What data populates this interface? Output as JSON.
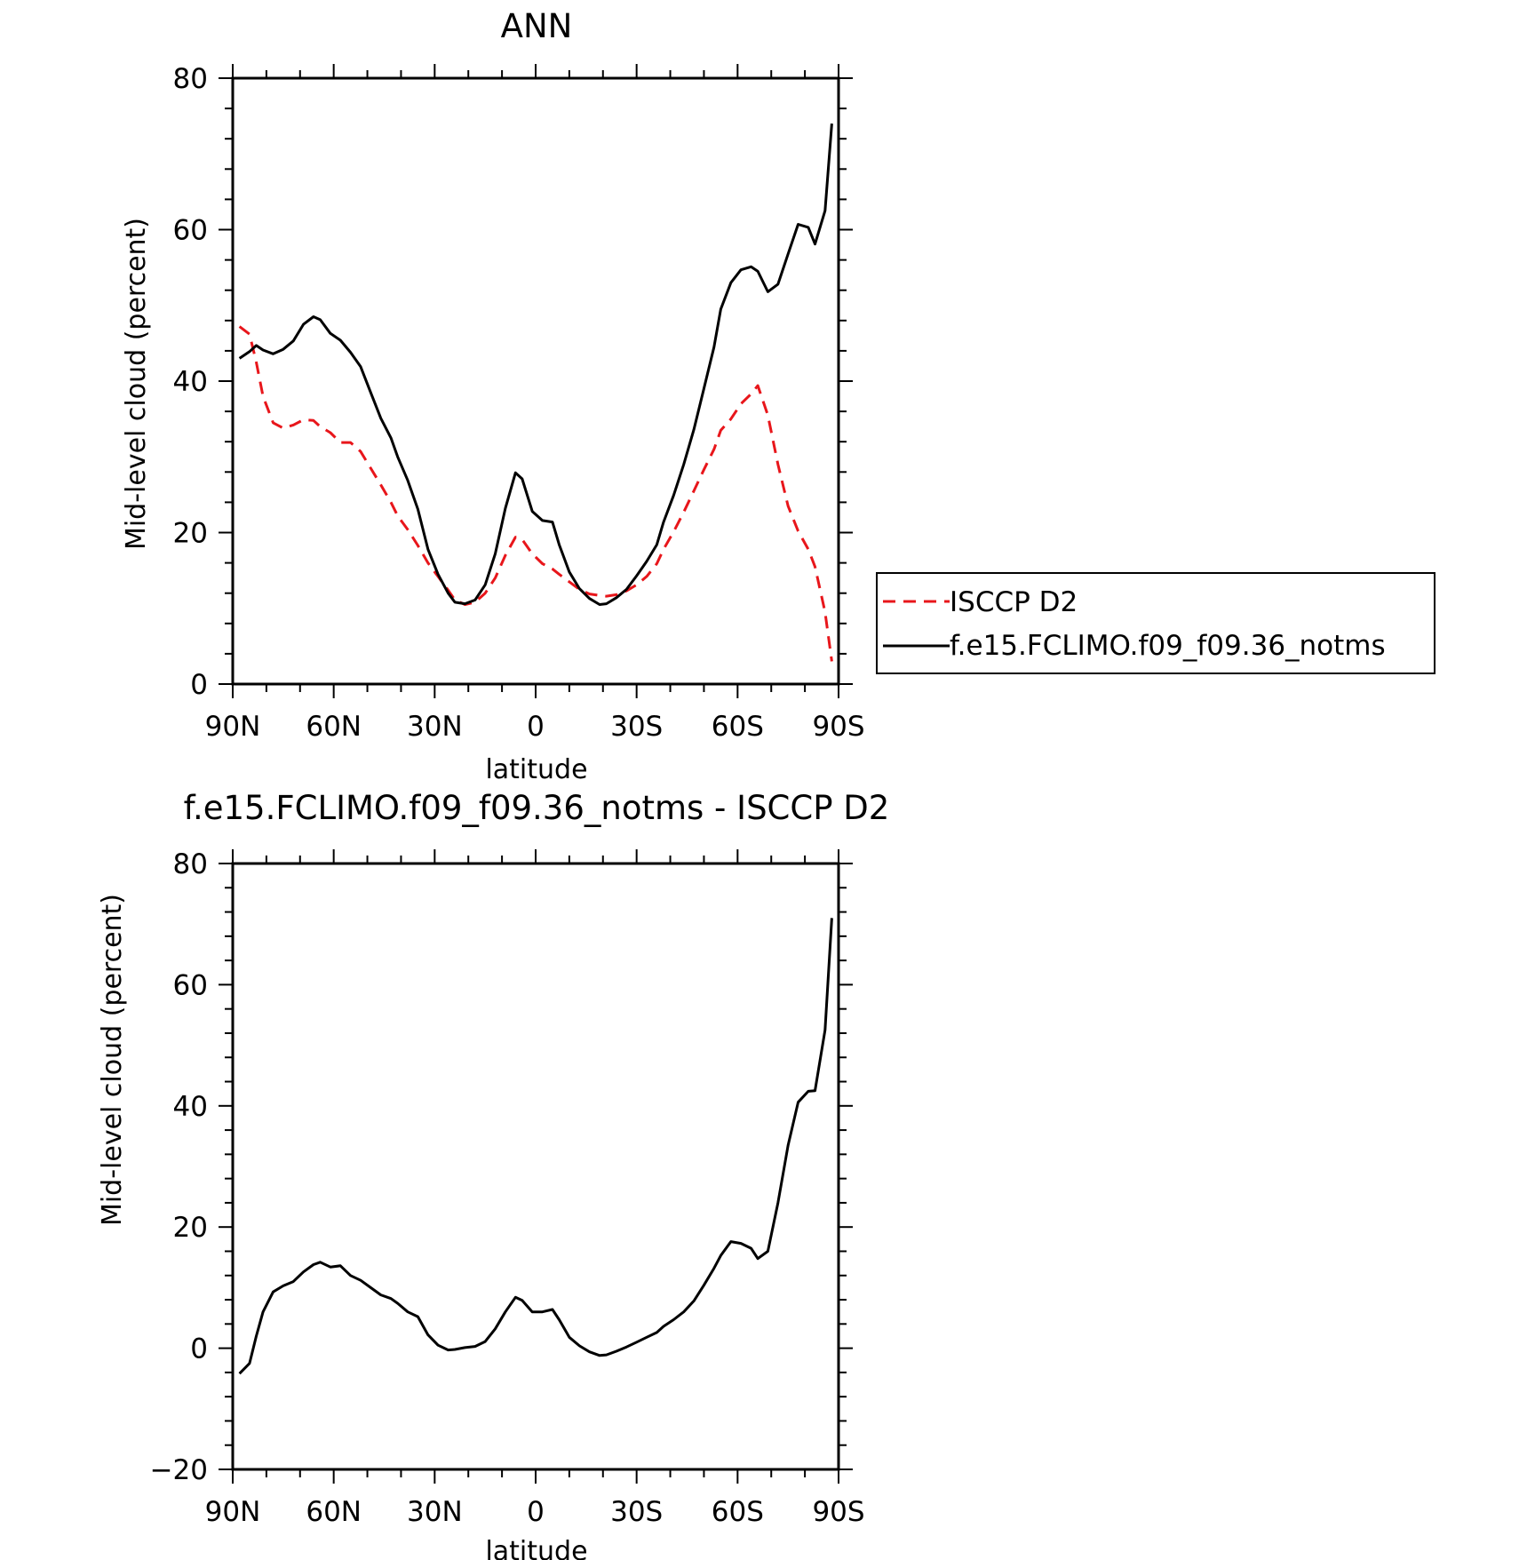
{
  "chart_data": [
    {
      "type": "line",
      "title": "ANN",
      "xlabel": "latitude",
      "ylabel": "Mid-level cloud (percent)",
      "ylim": [
        0,
        80
      ],
      "xlim": [
        90,
        -90
      ],
      "x_tick_labels": [
        "90N",
        "60N",
        "30N",
        "0",
        "30S",
        "60S",
        "90S"
      ],
      "y_tick_labels": [
        "0",
        "20",
        "40",
        "60",
        "80"
      ],
      "grid": false,
      "legend_position": "right",
      "series": [
        {
          "name": "ISCCP D2",
          "color": "#e8161b",
          "style": "dashed",
          "x": [
            88,
            85,
            83,
            81,
            78,
            75,
            72,
            69,
            66,
            64,
            61,
            58,
            55,
            52,
            49,
            46,
            43,
            41,
            38,
            35,
            32,
            29,
            26,
            24,
            21,
            18,
            15,
            12,
            9,
            6,
            4,
            1,
            -2,
            -5,
            -7,
            -10,
            -13,
            -16,
            -19,
            -21,
            -24,
            -27,
            -30,
            -33,
            -36,
            -38,
            -41,
            -44,
            -47,
            -50,
            -53,
            -55,
            -58,
            -61,
            -64,
            -66,
            -69,
            -72,
            -75,
            -78,
            -81,
            -83,
            -86,
            -88
          ],
          "y": [
            47.2,
            46.2,
            42.5,
            38.0,
            34.5,
            33.8,
            34.2,
            34.9,
            34.8,
            34.0,
            33.2,
            31.9,
            31.9,
            30.7,
            28.5,
            26.3,
            24.0,
            22.2,
            20.4,
            18.3,
            16.0,
            14.2,
            12.4,
            11.1,
            10.5,
            10.8,
            12.0,
            14.0,
            17.0,
            19.4,
            19.1,
            17.2,
            15.9,
            15.2,
            14.5,
            13.5,
            12.5,
            11.9,
            11.7,
            11.6,
            11.8,
            12.3,
            13.1,
            14.2,
            15.9,
            17.8,
            20.1,
            22.7,
            25.5,
            28.3,
            31.0,
            33.5,
            35.0,
            37.0,
            38.3,
            39.4,
            35.5,
            29.0,
            23.5,
            20.2,
            17.8,
            15.5,
            9.5,
            3.0
          ]
        },
        {
          "name": "f.e15.FCLIMO.f09_f09.36_notms",
          "color": "#000000",
          "style": "solid",
          "x": [
            88,
            85,
            83,
            81,
            78,
            75,
            72,
            69,
            66,
            64,
            61,
            58,
            55,
            52,
            49,
            46,
            43,
            41,
            38,
            35,
            32,
            29,
            26,
            24,
            21,
            18,
            15,
            12,
            9,
            6,
            4,
            1,
            -2,
            -5,
            -7,
            -10,
            -13,
            -16,
            -19,
            -21,
            -24,
            -27,
            -30,
            -33,
            -36,
            -38,
            -41,
            -44,
            -47,
            -50,
            -53,
            -55,
            -58,
            -61,
            -64,
            -66,
            -69,
            -72,
            -75,
            -78,
            -81,
            -83,
            -86,
            -88
          ],
          "y": [
            43.0,
            43.9,
            44.7,
            44.1,
            43.6,
            44.2,
            45.3,
            47.5,
            48.5,
            48.1,
            46.3,
            45.4,
            43.8,
            41.9,
            38.5,
            35.1,
            32.5,
            30.0,
            26.9,
            23.1,
            17.8,
            14.5,
            12.0,
            10.8,
            10.6,
            11.1,
            13.1,
            17.2,
            23.2,
            27.9,
            27.1,
            22.8,
            21.6,
            21.4,
            18.4,
            14.8,
            12.6,
            11.3,
            10.5,
            10.6,
            11.4,
            12.5,
            14.3,
            16.2,
            18.4,
            21.4,
            24.9,
            29.0,
            33.6,
            39.0,
            44.5,
            49.5,
            53.0,
            54.7,
            55.1,
            54.5,
            51.8,
            52.8,
            56.8,
            60.7,
            60.3,
            58.1,
            62.5,
            74.0
          ]
        }
      ]
    },
    {
      "type": "line",
      "title": "f.e15.FCLIMO.f09_f09.36_notms - ISCCP D2",
      "xlabel": "latitude",
      "ylabel": "Mid-level cloud (percent)",
      "ylim": [
        -20,
        80
      ],
      "xlim": [
        90,
        -90
      ],
      "x_tick_labels": [
        "90N",
        "60N",
        "30N",
        "0",
        "30S",
        "60S",
        "90S"
      ],
      "y_tick_labels": [
        "−20",
        "0",
        "20",
        "40",
        "60",
        "80"
      ],
      "grid": false,
      "series": [
        {
          "color": "#000000",
          "style": "solid",
          "x": [
            88,
            85,
            83,
            81,
            78,
            75,
            72,
            69,
            66,
            64,
            61,
            58,
            55,
            52,
            49,
            46,
            43,
            41,
            38,
            35,
            32,
            29,
            26,
            24,
            21,
            18,
            15,
            12,
            9,
            6,
            4,
            1,
            -2,
            -5,
            -7,
            -10,
            -13,
            -16,
            -19,
            -21,
            -24,
            -27,
            -30,
            -33,
            -36,
            -38,
            -41,
            -44,
            -47,
            -50,
            -53,
            -55,
            -58,
            -61,
            -64,
            -66,
            -69,
            -72,
            -75,
            -78,
            -81,
            -83,
            -86,
            -88
          ],
          "y": [
            -4.2,
            -2.5,
            2.0,
            6.0,
            9.3,
            10.3,
            11.0,
            12.6,
            13.8,
            14.2,
            13.4,
            13.6,
            12.0,
            11.2,
            10.0,
            8.8,
            8.2,
            7.4,
            6.0,
            5.2,
            2.2,
            0.5,
            -0.3,
            -0.2,
            0.1,
            0.3,
            1.1,
            3.2,
            6.0,
            8.4,
            7.9,
            6.0,
            6.0,
            6.4,
            4.7,
            1.8,
            0.4,
            -0.6,
            -1.2,
            -1.1,
            -0.5,
            0.2,
            1.0,
            1.8,
            2.6,
            3.6,
            4.7,
            6.0,
            7.8,
            10.4,
            13.2,
            15.3,
            17.6,
            17.3,
            16.5,
            14.8,
            16.0,
            24.0,
            33.5,
            40.6,
            42.4,
            42.5,
            52.5,
            71.0
          ]
        }
      ]
    }
  ],
  "legend": {
    "entries": [
      {
        "label": "ISCCP D2",
        "color": "#e8161b",
        "style": "dashed"
      },
      {
        "label": "f.e15.FCLIMO.f09_f09.36_notms",
        "color": "#000000",
        "style": "solid"
      }
    ]
  }
}
